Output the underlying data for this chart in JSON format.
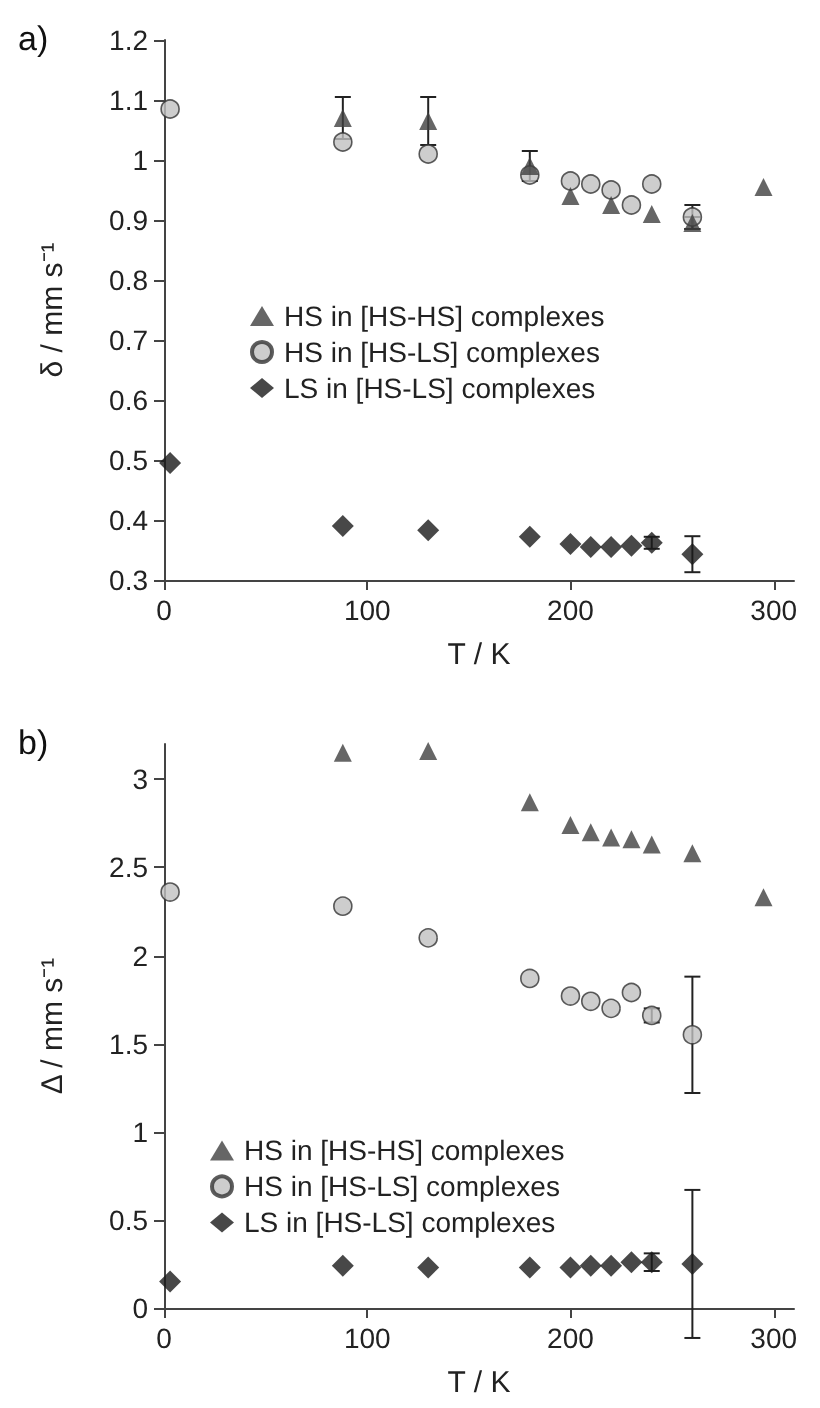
{
  "chart_data": [
    {
      "type": "scatter",
      "title": "a)",
      "xlabel": "T / K",
      "ylabel": "δ / mm s⁻¹",
      "xlim": [
        0,
        310
      ],
      "xticks": [
        0,
        100,
        200,
        300
      ],
      "ylim": [
        0.3,
        1.2
      ],
      "yticks": [
        0.3,
        0.4,
        0.5,
        0.6,
        0.7,
        0.8,
        0.9,
        1,
        1.1,
        1.2
      ],
      "grid": false,
      "legend": "center",
      "series": [
        {
          "name": "HS in [HS-HS] complexes",
          "color": "#404040",
          "marker": "triangle",
          "x": [
            88,
            130,
            180,
            200,
            220,
            240,
            260,
            295
          ],
          "values": [
            1.07,
            1.065,
            0.99,
            0.94,
            0.925,
            0.91,
            0.895,
            0.955
          ],
          "errors": [
            0.035,
            0.04,
            0.025,
            null,
            null,
            null,
            0.01,
            null
          ]
        },
        {
          "name": "HS in [HS-LS] complexes",
          "color": "#c0c0c0",
          "marker": "circle",
          "x": [
            3,
            88,
            130,
            180,
            200,
            210,
            220,
            230,
            240,
            260
          ],
          "values": [
            1.085,
            1.03,
            1.01,
            0.975,
            0.965,
            0.96,
            0.95,
            0.925,
            0.96,
            0.905
          ],
          "errors": [
            null,
            null,
            null,
            null,
            null,
            null,
            null,
            null,
            null,
            0.02
          ]
        },
        {
          "name": "LS in [HS-LS] complexes",
          "color": "#1a1a1a",
          "marker": "diamond",
          "x": [
            3,
            88,
            130,
            180,
            200,
            210,
            220,
            230,
            240,
            260
          ],
          "values": [
            0.495,
            0.39,
            0.383,
            0.372,
            0.36,
            0.355,
            0.355,
            0.357,
            0.362,
            0.343
          ],
          "errors": [
            null,
            null,
            null,
            null,
            null,
            null,
            null,
            null,
            0.01,
            0.03
          ]
        }
      ]
    },
    {
      "type": "scatter",
      "title": "b)",
      "xlabel": "T / K",
      "ylabel": "Δ / mm s⁻¹",
      "xlim": [
        0,
        310
      ],
      "xticks": [
        0,
        100,
        200,
        300
      ],
      "ylim": [
        0,
        3.2
      ],
      "yticks": [
        0,
        0.5,
        1,
        1.5,
        2,
        2.5,
        3
      ],
      "grid": false,
      "legend": "center left",
      "series": [
        {
          "name": "HS in [HS-HS] complexes",
          "color": "#404040",
          "marker": "triangle",
          "x": [
            88,
            130,
            180,
            200,
            210,
            220,
            230,
            240,
            260,
            295
          ],
          "values": [
            3.15,
            3.16,
            2.87,
            2.74,
            2.7,
            2.67,
            2.66,
            2.63,
            2.58,
            2.33
          ]
        },
        {
          "name": "HS in [HS-LS] complexes",
          "color": "#c0c0c0",
          "marker": "circle",
          "x": [
            3,
            88,
            130,
            180,
            200,
            210,
            220,
            230,
            240,
            260
          ],
          "values": [
            2.36,
            2.28,
            2.1,
            1.87,
            1.77,
            1.74,
            1.7,
            1.79,
            1.66,
            1.55
          ],
          "errors": [
            null,
            null,
            null,
            null,
            null,
            null,
            null,
            null,
            0.04,
            0.33
          ]
        },
        {
          "name": "LS in [HS-LS] complexes",
          "color": "#1a1a1a",
          "marker": "diamond",
          "x": [
            3,
            88,
            130,
            180,
            200,
            210,
            220,
            230,
            240,
            260
          ],
          "values": [
            0.15,
            0.24,
            0.23,
            0.23,
            0.23,
            0.24,
            0.24,
            0.26,
            0.26,
            0.25
          ],
          "errors": [
            null,
            null,
            null,
            null,
            null,
            null,
            null,
            null,
            0.05,
            0.42
          ]
        }
      ]
    }
  ]
}
